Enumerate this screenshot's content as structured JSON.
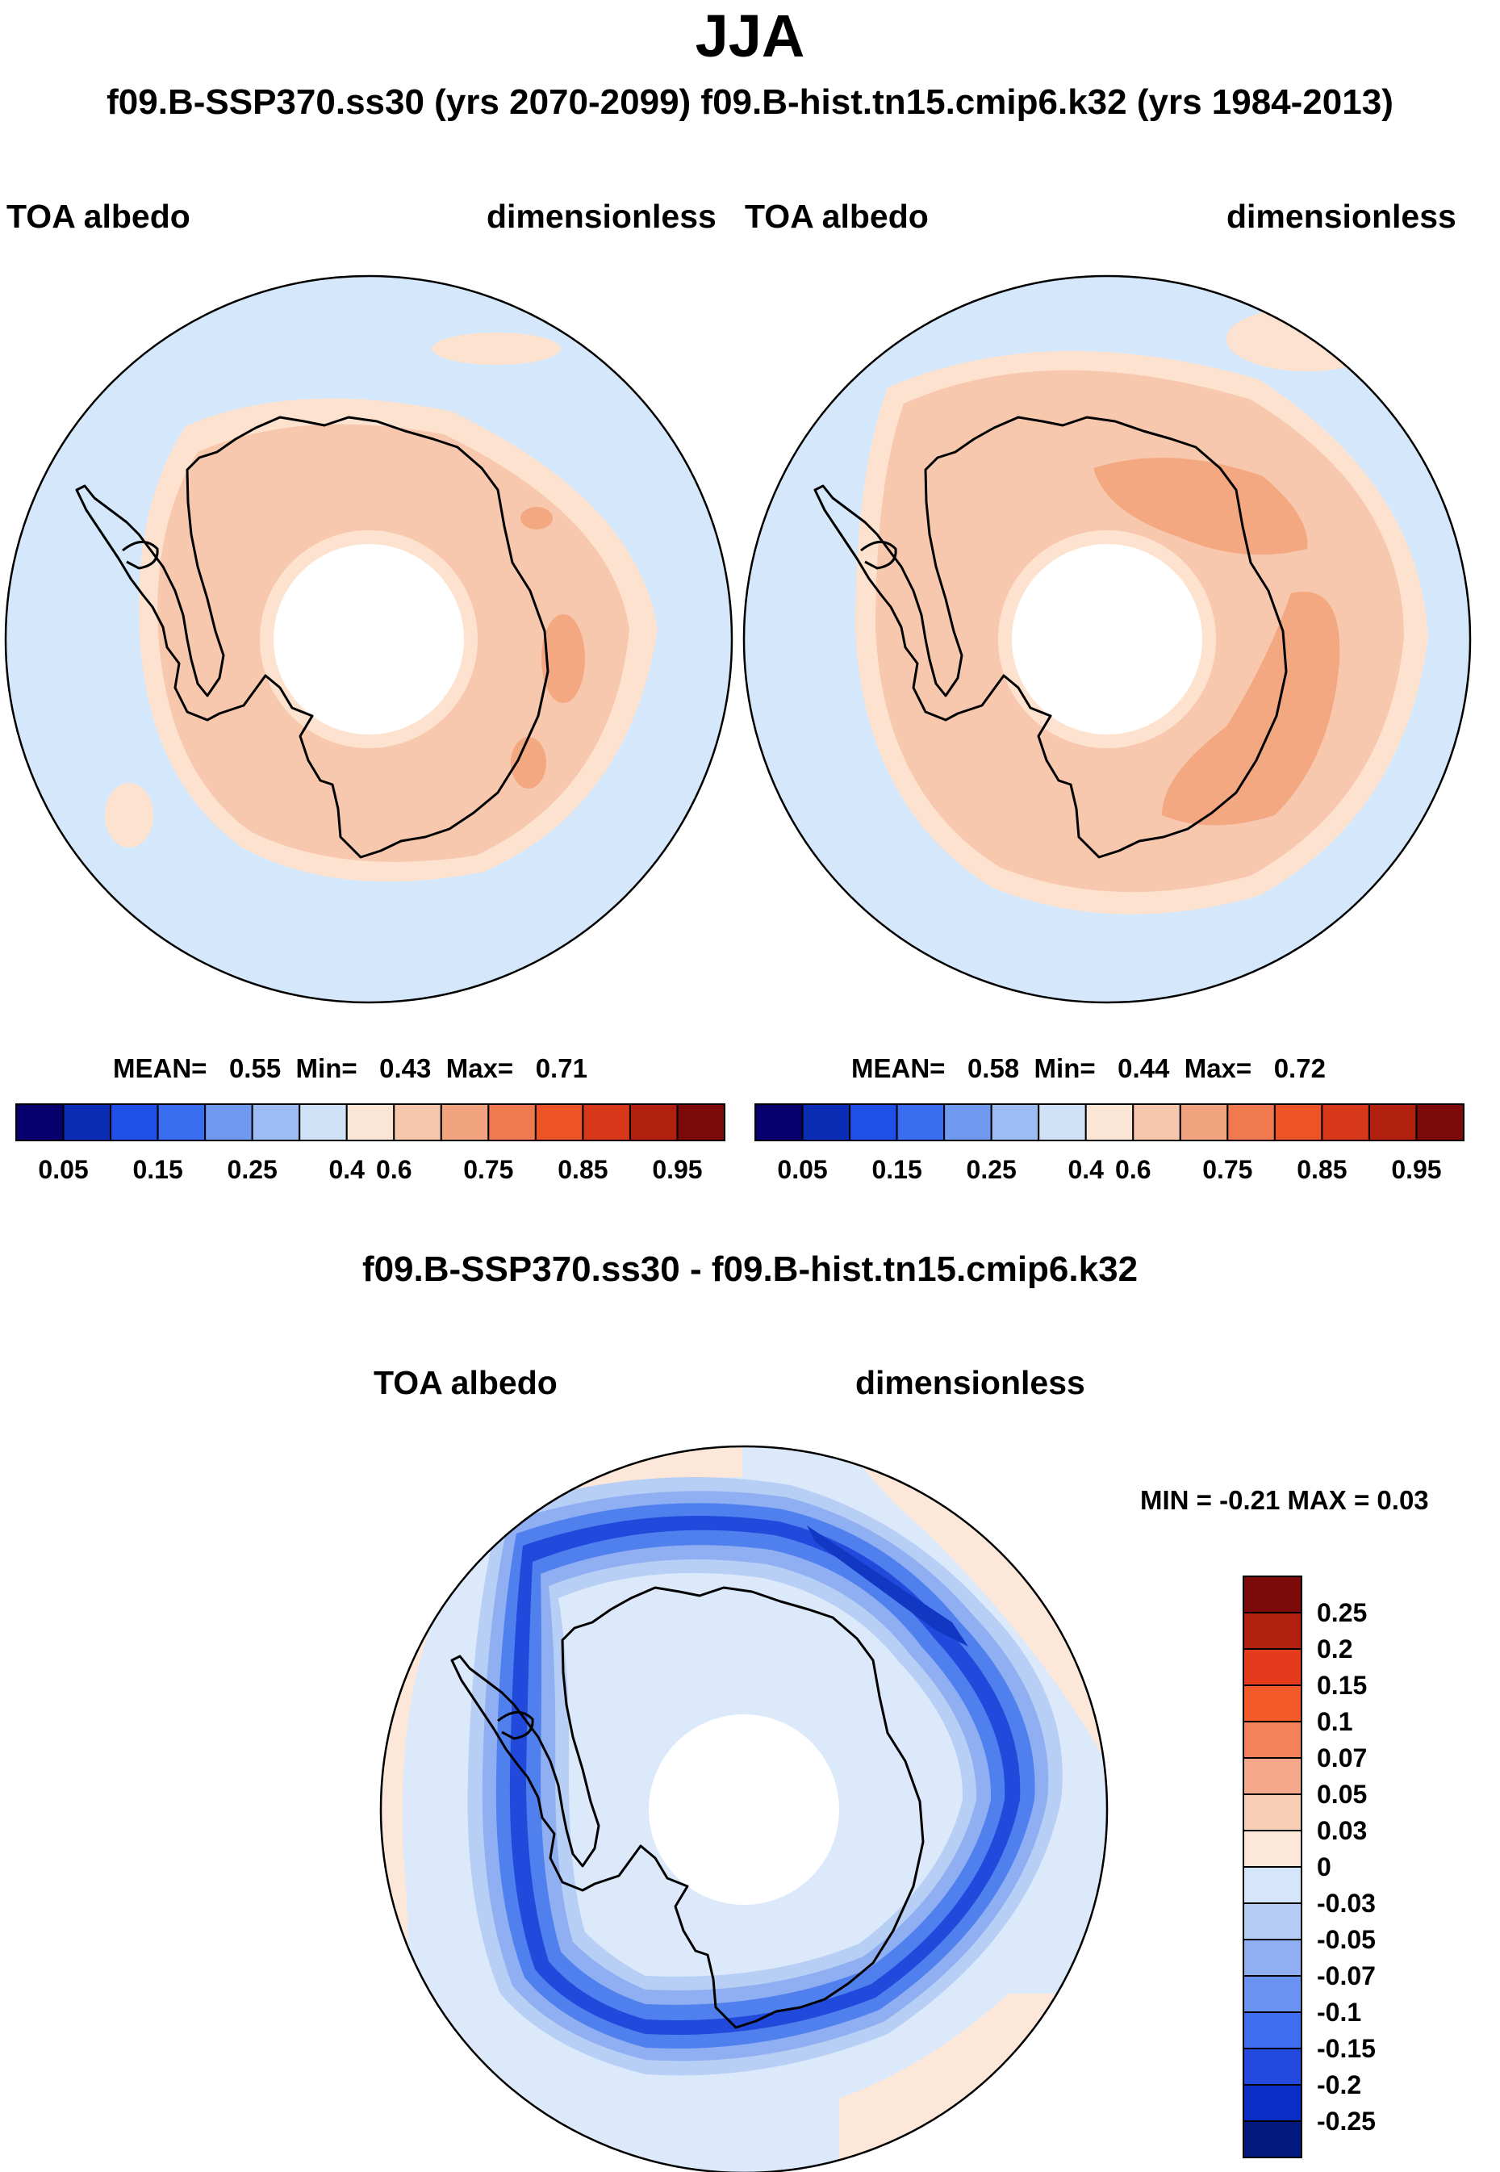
{
  "season": "JJA",
  "subtitle": "f09.B-SSP370.ss30 (yrs 2070-2099)  f09.B-hist.tn15.cmip6.k32 (yrs 1984-2013)",
  "panels": [
    {
      "left_label": "TOA albedo",
      "right_label": "dimensionless",
      "stats": {
        "mean_label": "MEAN=",
        "mean": "0.55",
        "min_label": "Min=",
        "min": "0.43",
        "max_label": "Max=",
        "max": "0.71"
      }
    },
    {
      "left_label": "TOA albedo",
      "right_label": "dimensionless",
      "stats": {
        "mean_label": "MEAN=",
        "mean": "0.58",
        "min_label": "Min=",
        "min": "0.44",
        "max_label": "Max=",
        "max": "0.72"
      }
    }
  ],
  "diff": {
    "title": "f09.B-SSP370.ss30 - f09.B-hist.tn15.cmip6.k32",
    "left_label": "TOA albedo",
    "right_label": "dimensionless",
    "minmax": "MIN =  -0.21 MAX =   0.03"
  },
  "chart_data": [
    {
      "type": "map",
      "title": "f09.B-SSP370.ss30 TOA albedo JJA (Antarctic polar stereographic)",
      "units": "dimensionless",
      "mean": 0.55,
      "min": 0.43,
      "max": 0.71
    },
    {
      "type": "map",
      "title": "f09.B-hist.tn15.cmip6.k32 TOA albedo JJA (Antarctic polar stereographic)",
      "units": "dimensionless",
      "mean": 0.58,
      "min": 0.44,
      "max": 0.72
    },
    {
      "type": "map",
      "title": "Difference TOA albedo JJA",
      "units": "dimensionless",
      "min": -0.21,
      "max": 0.03
    }
  ],
  "colorbar_abs": {
    "colors": [
      "#08006e",
      "#0b2cb4",
      "#1e4fe6",
      "#3a6ef0",
      "#6f9af0",
      "#9dbcf3",
      "#cfe2f8",
      "#fbe6d6",
      "#f6c6ad",
      "#f2a37f",
      "#f07a4f",
      "#ec5428",
      "#d8381a",
      "#b2200f",
      "#7c0a0a"
    ],
    "labels": [
      "0.05",
      "0.15",
      "0.25",
      "0.4",
      "0.6",
      "0.75",
      "0.85",
      "0.95"
    ]
  },
  "colorbar_diff": {
    "colors": [
      "#7c0a0a",
      "#b2200f",
      "#e53a1c",
      "#f25a29",
      "#f3825b",
      "#f5a98a",
      "#f8cdb5",
      "#fde7d9",
      "#d6e6fa",
      "#b5cdf6",
      "#8faff2",
      "#6a92f0",
      "#3f6df0",
      "#2349dd",
      "#0a2ec5",
      "#04197e"
    ],
    "labels": [
      "0.25",
      "0.2",
      "0.15",
      "0.1",
      "0.07",
      "0.05",
      "0.03",
      "0",
      "-0.03",
      "-0.05",
      "-0.07",
      "-0.1",
      "-0.15",
      "-0.2",
      "-0.25"
    ]
  },
  "map_colors": {
    "ocean_light": "#d5e7fa",
    "cream": "#fde3cf",
    "salmon": "#f8c8ae",
    "deep_salmon": "#f4a882",
    "diff_bg": "#dbe9fb",
    "blue1": "#b7cef5",
    "blue2": "#8faff2",
    "blue3": "#5080ee",
    "blue4": "#2149db",
    "blue5": "#1238c3"
  }
}
